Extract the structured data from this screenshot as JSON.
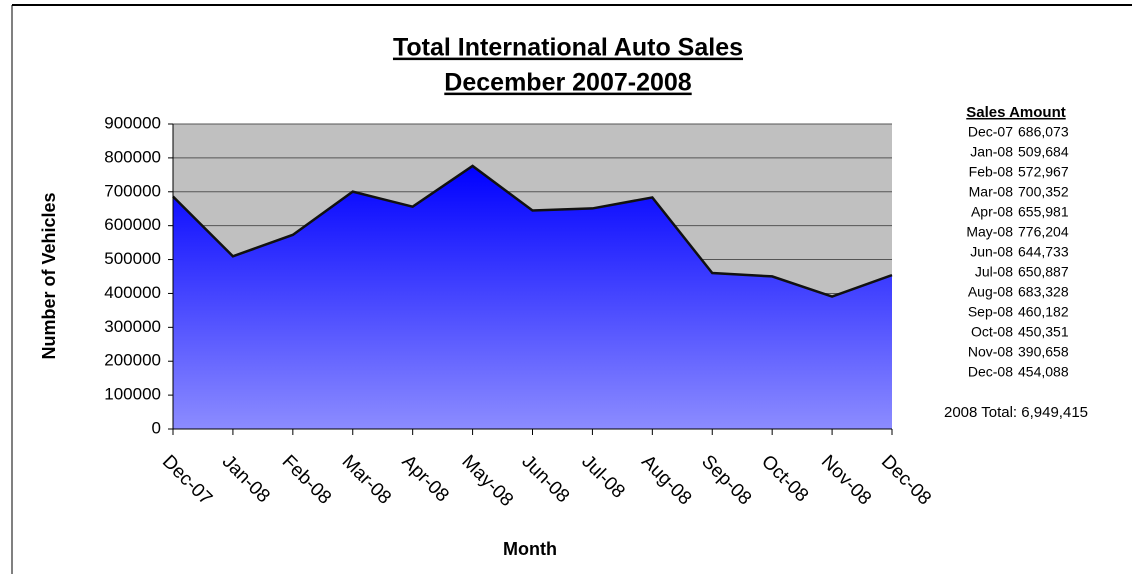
{
  "chart_data": {
    "type": "area",
    "title": "Total International Auto Sales",
    "subtitle": "December 2007-2008",
    "x_label": "Month",
    "y_label": "Number of Vehicles",
    "categories": [
      "Dec-07",
      "Jan-08",
      "Feb-08",
      "Mar-08",
      "Apr-08",
      "May-08",
      "Jun-08",
      "Jul-08",
      "Aug-08",
      "Sep-08",
      "Oct-08",
      "Nov-08",
      "Dec-08"
    ],
    "values": [
      686073,
      509684,
      572967,
      700352,
      655981,
      776204,
      644733,
      650887,
      683328,
      460182,
      450351,
      390658,
      454088
    ],
    "value_labels": [
      "686,073",
      "509,684",
      "572,967",
      "700,352",
      "655,981",
      "776,204",
      "644,733",
      "650,887",
      "683,328",
      "460,182",
      "450,351",
      "390,658",
      "454,088"
    ],
    "color": "#0000ff",
    "ylim": [
      0,
      900000
    ],
    "yticks": [
      0,
      100000,
      200000,
      300000,
      400000,
      500000,
      600000,
      700000,
      800000,
      900000
    ],
    "grid": true,
    "table_title": "Sales Amount",
    "total_label": "2008 Total: 6,949,415"
  }
}
